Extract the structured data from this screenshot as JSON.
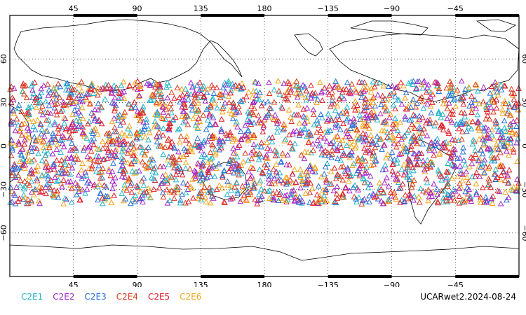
{
  "map": {
    "projection": "cylindrical-equidistant",
    "center_longitude": 180,
    "lon_range": [
      0,
      360
    ],
    "lat_range": [
      -90,
      90
    ],
    "grid": "dotted",
    "top_lon_labels": [
      "45",
      "90",
      "135",
      "180",
      "−135",
      "−90",
      "−45"
    ],
    "bottom_lon_labels": [
      "45",
      "90",
      "135",
      "180",
      "−135",
      "−90",
      "−45"
    ],
    "left_lat_labels": [
      "60",
      "30",
      "0",
      "−30",
      "−60"
    ],
    "right_lat_labels": [
      "60",
      "30",
      "0",
      "−30",
      "−60"
    ],
    "occultation_lat_band": [
      -40,
      45
    ],
    "marker": "open-triangle"
  },
  "legend": [
    {
      "label": "C2E1",
      "color": "#22b5c8"
    },
    {
      "label": "C2E2",
      "color": "#a326c8"
    },
    {
      "label": "C2E3",
      "color": "#2a6fd6"
    },
    {
      "label": "C2E4",
      "color": "#d63c1e"
    },
    {
      "label": "C2E5",
      "color": "#e01c2a"
    },
    {
      "label": "C2E6",
      "color": "#f2a51a"
    }
  ],
  "stamp": "UCARwet2.2024-08-24"
}
